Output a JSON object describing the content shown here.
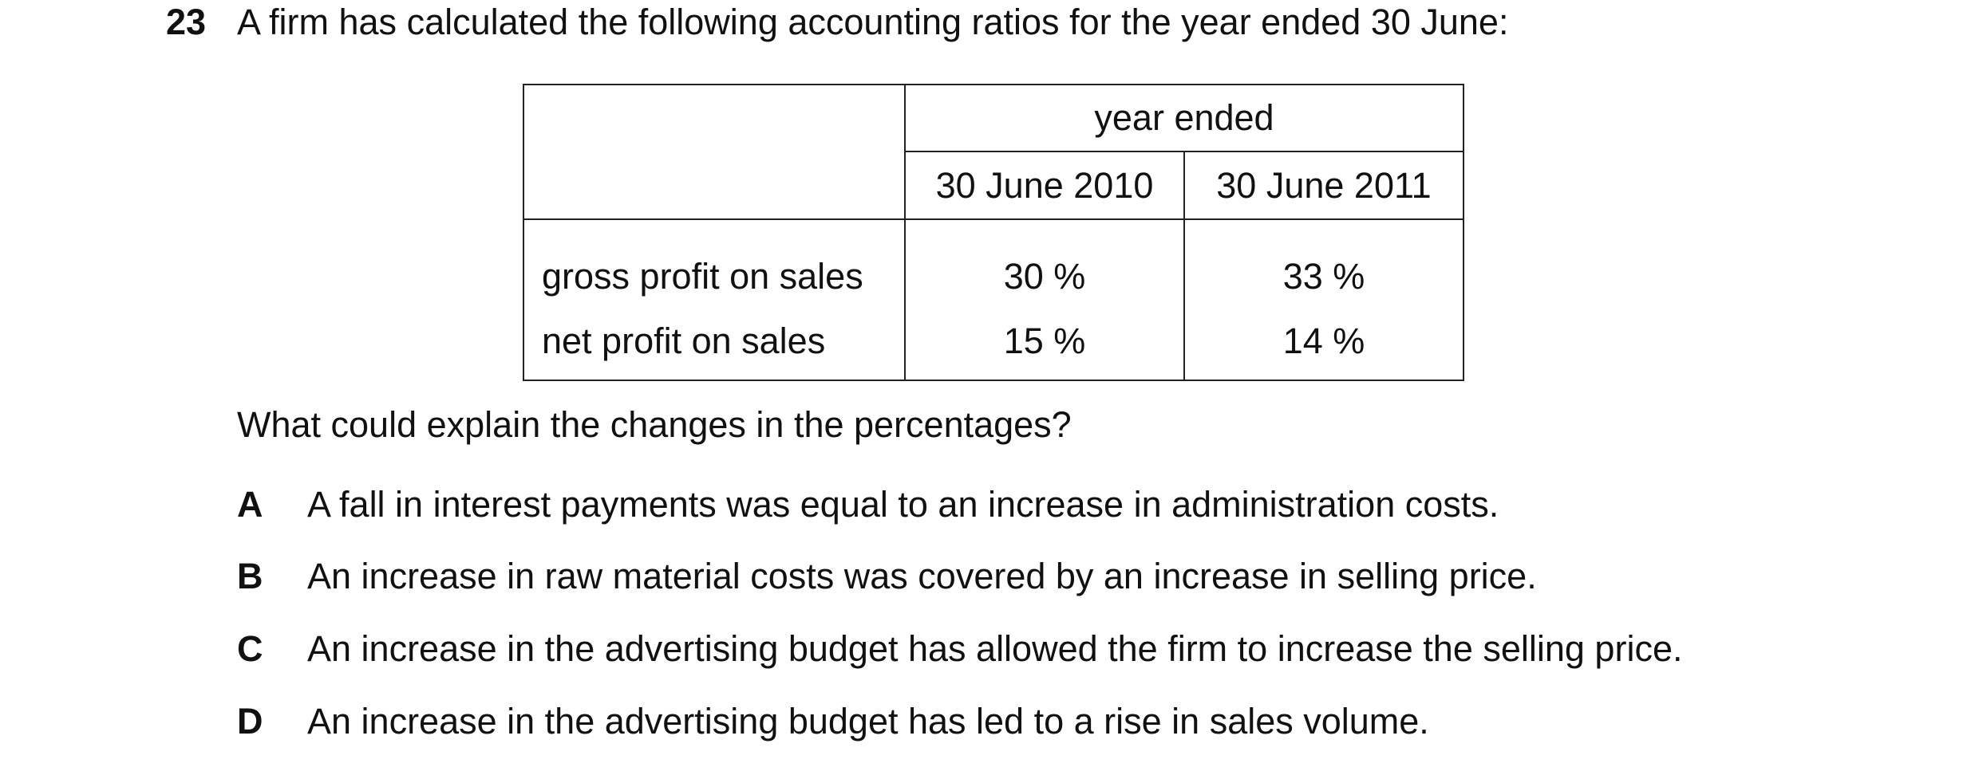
{
  "question": {
    "number": "23",
    "stem": "A firm has calculated the following accounting ratios for the year ended 30 June:",
    "prompt": "What could explain the changes in the percentages?"
  },
  "table": {
    "group_header": "year ended",
    "columns": [
      "30 June 2010",
      "30 June 2011"
    ],
    "rows": [
      {
        "label": "gross profit on sales",
        "values": [
          "30 %",
          "33 %"
        ]
      },
      {
        "label": "net profit on sales",
        "values": [
          "15 %",
          "14 %"
        ]
      }
    ]
  },
  "options": [
    {
      "letter": "A",
      "text": "A fall in interest payments was equal to an increase in administration costs."
    },
    {
      "letter": "B",
      "text": "An increase in raw material costs was covered by an increase in selling price."
    },
    {
      "letter": "C",
      "text": "An increase in the advertising budget has allowed the firm to increase the selling price."
    },
    {
      "letter": "D",
      "text": "An increase in the advertising budget has led to a rise in sales volume."
    }
  ]
}
